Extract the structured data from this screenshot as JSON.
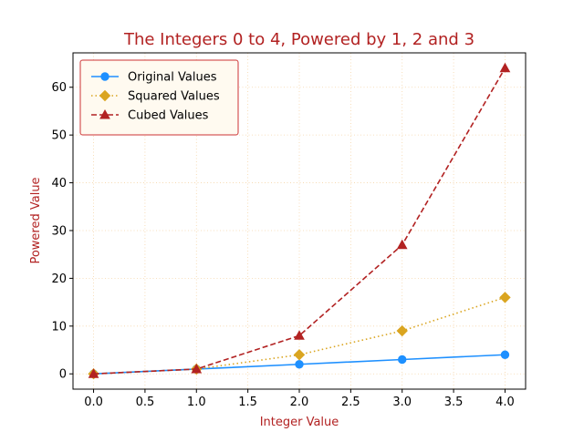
{
  "chart_data": {
    "type": "line",
    "title": "The Integers 0 to 4, Powered by 1, 2 and 3",
    "xlabel": "Integer Value",
    "ylabel": "Powered Value",
    "x": [
      0,
      1,
      2,
      3,
      4
    ],
    "xlim": [
      -0.2,
      4.2
    ],
    "ylim": [
      -3.2,
      67.2
    ],
    "xticks": [
      0.0,
      0.5,
      1.0,
      1.5,
      2.0,
      2.5,
      3.0,
      3.5,
      4.0
    ],
    "xtick_labels": [
      "0.0",
      "0.5",
      "1.0",
      "1.5",
      "2.0",
      "2.5",
      "3.0",
      "3.5",
      "4.0"
    ],
    "yticks": [
      0,
      10,
      20,
      30,
      40,
      50,
      60
    ],
    "ytick_labels": [
      "0",
      "10",
      "20",
      "30",
      "40",
      "50",
      "60"
    ],
    "grid": true,
    "grid_style": "dotted",
    "grid_color": "#f5d5a8",
    "title_color": "#b22222",
    "label_color": "#b22222",
    "legend_position": "top-left",
    "legend_bg": "#fffaf0",
    "legend_border": "#cc3333",
    "series": [
      {
        "name": "Original Values",
        "values": [
          0,
          1,
          2,
          3,
          4
        ],
        "color": "#1e90ff",
        "line_style": "solid",
        "marker": "circle"
      },
      {
        "name": "Squared Values",
        "values": [
          0,
          1,
          4,
          9,
          16
        ],
        "color": "#daa520",
        "line_style": "dotted",
        "marker": "diamond"
      },
      {
        "name": "Cubed Values",
        "values": [
          0,
          1,
          8,
          27,
          64
        ],
        "color": "#b22222",
        "line_style": "dashed",
        "marker": "triangle"
      }
    ]
  }
}
